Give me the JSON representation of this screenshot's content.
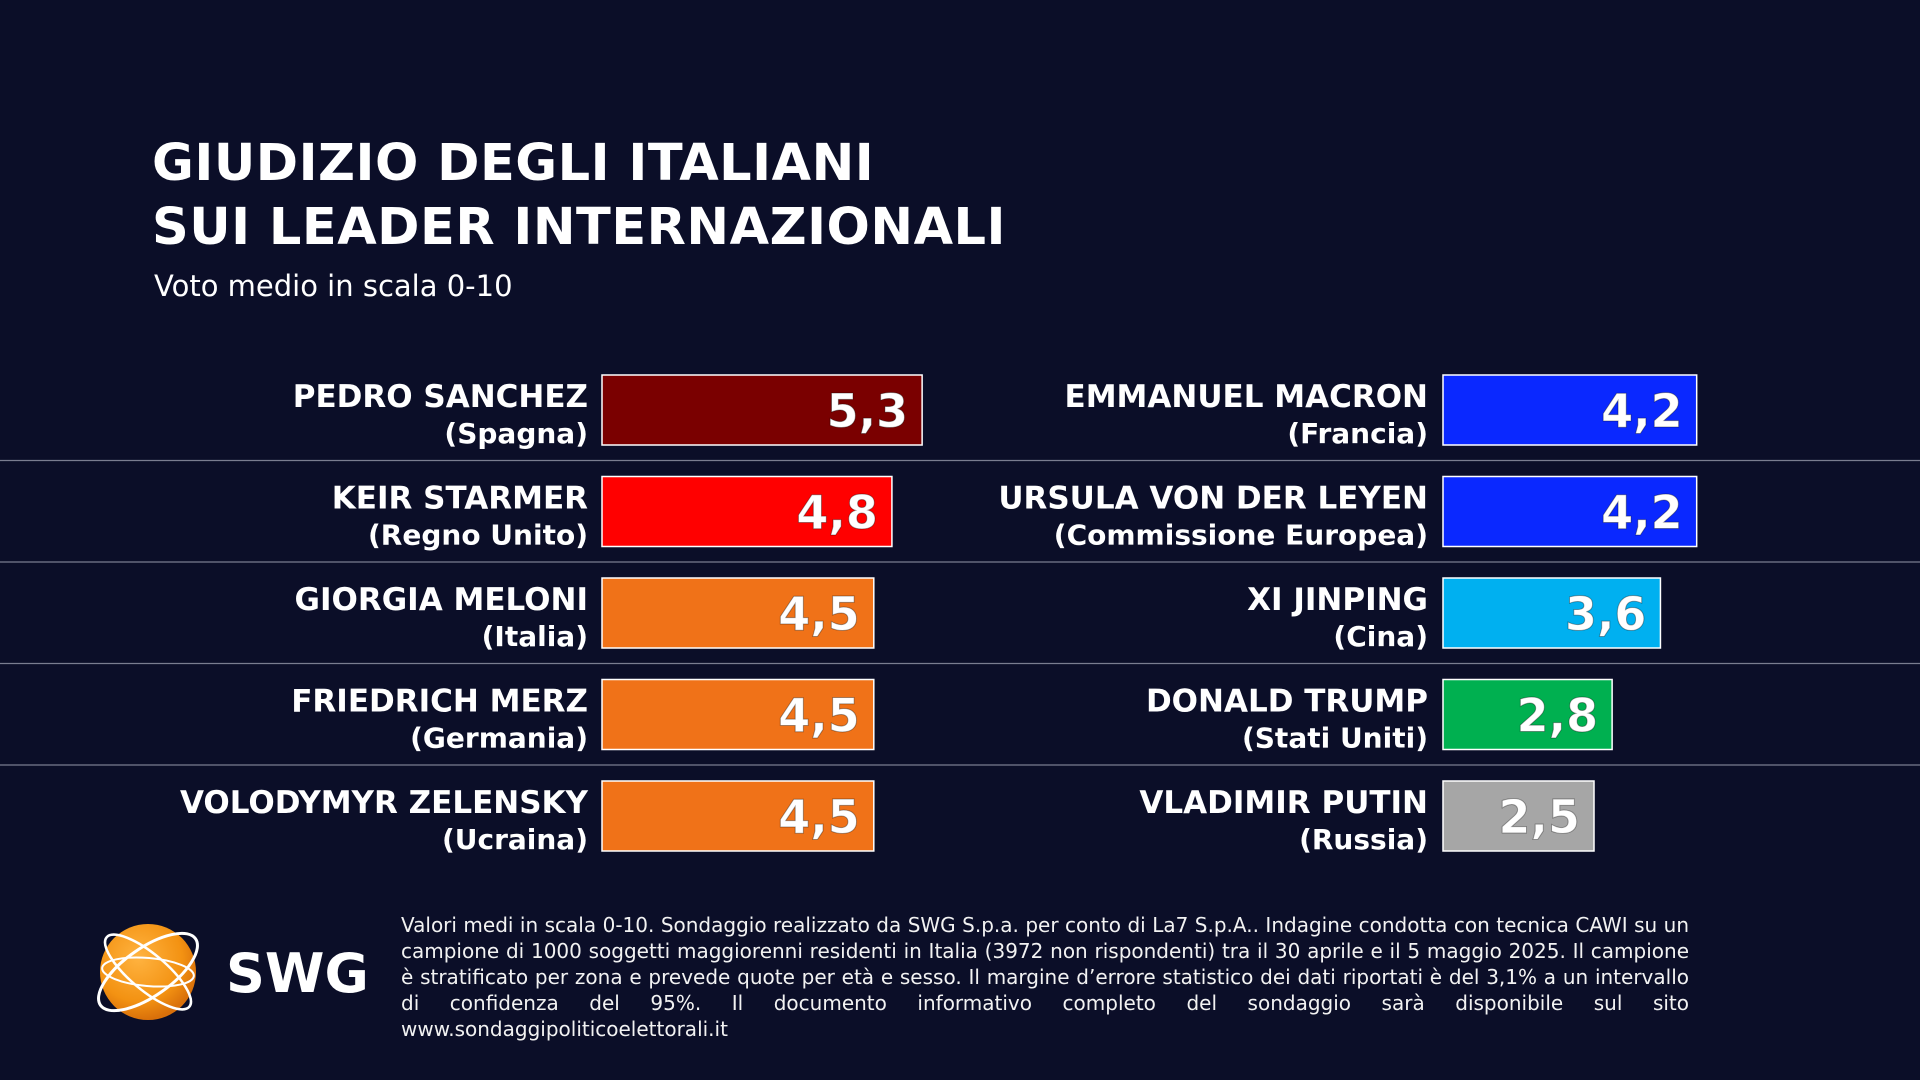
{
  "title_line1": "GIUDIZIO DEGLI ITALIANI",
  "title_line2": "SUI LEADER INTERNAZIONALI",
  "subtitle": "Voto medio in scala 0-10",
  "footnote": "Valori medi in scala 0-10. Sondaggio realizzato da SWG S.p.a. per conto di La7 S.p.A.. Indagine condotta con tecnica CAWI su un campione di 1000 soggetti maggiorenni residenti in Italia (3972 non rispondenti) tra il 30 aprile e il 5 maggio 2025. Il campione è stratificato per zona e prevede quote per età e sesso. Il margine d’errore statistico dei dati riportati è del 3,1% a un intervallo di confidenza del 95%. Il documento informativo completo del sondaggio sarà disponibile sul sito www.sondaggipoliticoelettorali.it",
  "logo_text": "SWG",
  "colors": {
    "background": "#0b0e28",
    "separator": "#7a7d90",
    "logo_orange": "#f39212"
  },
  "chart_data": {
    "type": "bar",
    "title": "GIUDIZIO DEGLI ITALIANI SUI LEADER INTERNAZIONALI",
    "subtitle": "Voto medio in scala 0-10",
    "scale": [
      0,
      10
    ],
    "orientation": "horizontal",
    "columns": [
      [
        {
          "name": "PEDRO SANCHEZ",
          "country": "(Spagna)",
          "value": 5.3,
          "label": "5,3",
          "color": "#7a0000"
        },
        {
          "name": "KEIR STARMER",
          "country": "(Regno Unito)",
          "value": 4.8,
          "label": "4,8",
          "color": "#ff0000"
        },
        {
          "name": "GIORGIA MELONI",
          "country": "(Italia)",
          "value": 4.5,
          "label": "4,5",
          "color": "#f07218"
        },
        {
          "name": "FRIEDRICH MERZ",
          "country": "(Germania)",
          "value": 4.5,
          "label": "4,5",
          "color": "#f07218"
        },
        {
          "name": "VOLODYMYR ZELENSKY",
          "country": "(Ucraina)",
          "value": 4.5,
          "label": "4,5",
          "color": "#f07218"
        }
      ],
      [
        {
          "name": "EMMANUEL MACRON",
          "country": "(Francia)",
          "value": 4.2,
          "label": "4,2",
          "color": "#0a28ff"
        },
        {
          "name": "URSULA VON DER LEYEN",
          "country": "(Commissione Europea)",
          "value": 4.2,
          "label": "4,2",
          "color": "#0a28ff"
        },
        {
          "name": "XI JINPING",
          "country": "(Cina)",
          "value": 3.6,
          "label": "3,6",
          "color": "#00b0f0"
        },
        {
          "name": "DONALD TRUMP",
          "country": "(Stati Uniti)",
          "value": 2.8,
          "label": "2,8",
          "color": "#00b050"
        },
        {
          "name": "VLADIMIR PUTIN",
          "country": "(Russia)",
          "value": 2.5,
          "label": "2,5",
          "color": "#a6a6a6"
        }
      ]
    ]
  }
}
